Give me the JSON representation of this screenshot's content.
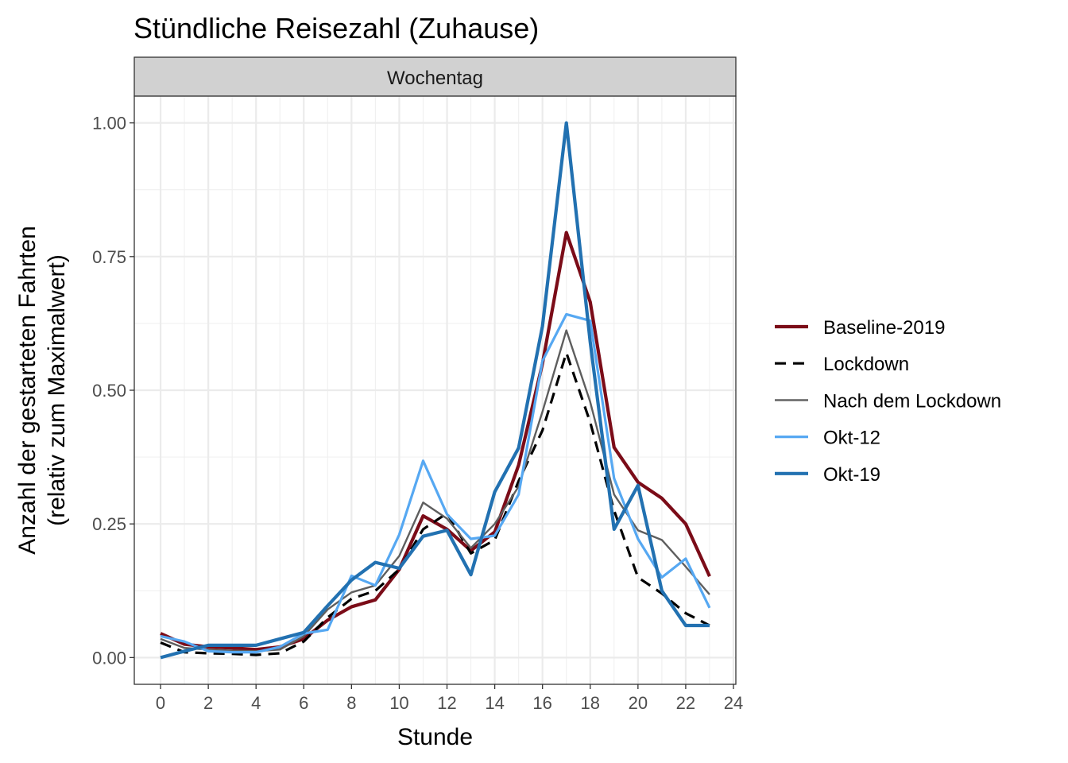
{
  "chart_data": {
    "type": "line",
    "title": "Stündliche Reisezahl (Zuhause)",
    "facet_label": "Wochentag",
    "xlabel": "Stunde",
    "ylabel_lines": [
      "Anzahl der gestarteten Fahrten",
      "(relativ zum Maximalwert)"
    ],
    "xlim": [
      -1.1,
      24.1
    ],
    "ylim": [
      -0.05,
      1.05
    ],
    "x_ticks": [
      0,
      2,
      4,
      6,
      8,
      10,
      12,
      14,
      16,
      18,
      20,
      22,
      24
    ],
    "x_tick_labels": [
      "0",
      "2",
      "4",
      "6",
      "8",
      "10",
      "12",
      "14",
      "16",
      "18",
      "20",
      "22",
      "24"
    ],
    "y_ticks": [
      0,
      0.25,
      0.5,
      0.75,
      1.0
    ],
    "y_tick_labels": [
      "0.00",
      "0.25",
      "0.50",
      "0.75",
      "1.00"
    ],
    "grid": true,
    "legend_position": "right",
    "x": [
      0,
      1,
      2,
      3,
      4,
      5,
      6,
      7,
      8,
      9,
      10,
      11,
      12,
      13,
      14,
      15,
      16,
      17,
      18,
      19,
      20,
      21,
      22,
      23
    ],
    "series": [
      {
        "name": "Baseline-2019",
        "color": "#7b0c18",
        "dash": "solid",
        "width": "thick",
        "values": [
          0.045,
          0.025,
          0.02,
          0.018,
          0.015,
          0.02,
          0.035,
          0.07,
          0.095,
          0.108,
          0.165,
          0.265,
          0.24,
          0.2,
          0.235,
          0.36,
          0.55,
          0.795,
          0.665,
          0.393,
          0.328,
          0.298,
          0.25,
          0.152
        ]
      },
      {
        "name": "Lockdown",
        "color": "#000000",
        "dash": "dashed",
        "width": "normal",
        "values": [
          0.028,
          0.01,
          0.008,
          0.007,
          0.005,
          0.008,
          0.03,
          0.075,
          0.11,
          0.125,
          0.165,
          0.24,
          0.27,
          0.195,
          0.22,
          0.33,
          0.425,
          0.57,
          0.44,
          0.275,
          0.15,
          0.12,
          0.083,
          0.06
        ]
      },
      {
        "name": "Nach dem Lockdown",
        "color": "#5e5e5e",
        "dash": "solid",
        "width": "thin",
        "values": [
          0.035,
          0.018,
          0.015,
          0.013,
          0.012,
          0.015,
          0.04,
          0.09,
          0.122,
          0.135,
          0.19,
          0.29,
          0.26,
          0.205,
          0.25,
          0.32,
          0.46,
          0.612,
          0.478,
          0.305,
          0.238,
          0.22,
          0.17,
          0.118
        ]
      },
      {
        "name": "Okt-12",
        "color": "#56a8f2",
        "dash": "solid",
        "width": "normal",
        "values": [
          0.04,
          0.03,
          0.012,
          0.01,
          0.01,
          0.02,
          0.045,
          0.052,
          0.153,
          0.135,
          0.23,
          0.368,
          0.268,
          0.222,
          0.228,
          0.305,
          0.555,
          0.642,
          0.63,
          0.335,
          0.222,
          0.15,
          0.185,
          0.093
        ]
      },
      {
        "name": "Okt-19",
        "color": "#2271b1",
        "dash": "solid",
        "width": "thick",
        "values": [
          0.0,
          0.012,
          0.023,
          0.023,
          0.023,
          0.035,
          0.047,
          0.097,
          0.145,
          0.178,
          0.167,
          0.227,
          0.238,
          0.155,
          0.31,
          0.392,
          0.62,
          1.0,
          0.59,
          0.24,
          0.322,
          0.125,
          0.06,
          0.06
        ]
      }
    ]
  }
}
